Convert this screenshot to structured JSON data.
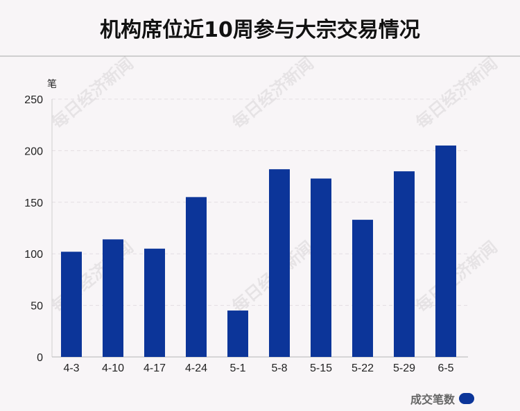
{
  "title": "机构席位近10周参与大宗交易情况",
  "watermark_text": "每日经济新闻",
  "chart_data": {
    "type": "bar",
    "categories": [
      "4-3",
      "4-10",
      "4-17",
      "4-24",
      "5-1",
      "5-8",
      "5-15",
      "5-22",
      "5-29",
      "6-5"
    ],
    "series": [
      {
        "name": "成交笔数",
        "values": [
          102,
          114,
          105,
          155,
          45,
          182,
          173,
          133,
          180,
          205
        ],
        "color": "#0c3599"
      }
    ],
    "ylabel": "笔",
    "ylim": [
      0,
      250
    ],
    "yticks": [
      0,
      50,
      100,
      150,
      200,
      250
    ],
    "grid": true,
    "legend_position": "bottom-right"
  }
}
